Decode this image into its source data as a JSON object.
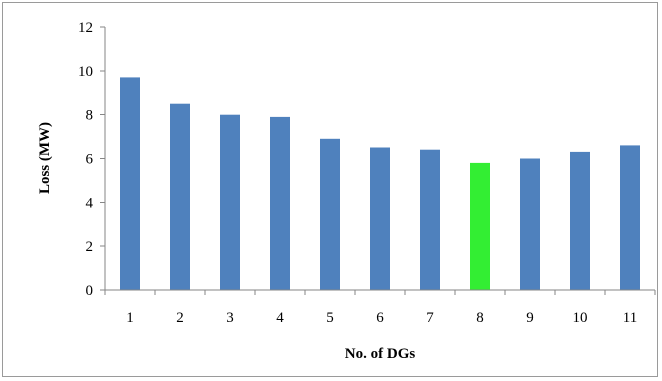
{
  "chart_data": {
    "type": "bar",
    "title": "",
    "xlabel": "No. of DGs",
    "ylabel": "Loss (MW)",
    "categories": [
      "1",
      "2",
      "3",
      "4",
      "5",
      "6",
      "7",
      "8",
      "9",
      "10",
      "11"
    ],
    "values": [
      9.7,
      8.5,
      8.0,
      7.9,
      6.9,
      6.5,
      6.4,
      5.8,
      6.0,
      6.3,
      6.6
    ],
    "ylim": [
      0,
      12
    ],
    "yticks": [
      "0",
      "2",
      "4",
      "6",
      "8",
      "10",
      "12"
    ],
    "grid": false,
    "legend": "none",
    "colors": {
      "bar": "#4f81bd",
      "highlight": "#33ee33",
      "axis": "#868686",
      "frame": "#9a9a9a"
    },
    "highlight_category": "8"
  }
}
